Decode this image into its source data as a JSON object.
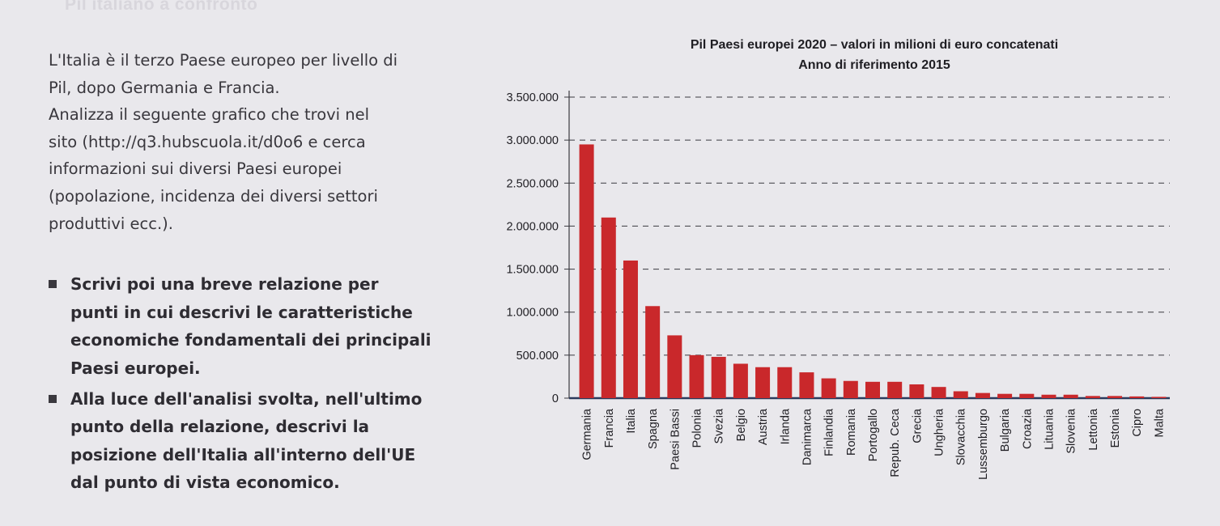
{
  "header": {
    "text": "Pil italiano a confronto"
  },
  "intro": {
    "lines": [
      "L'Italia è il terzo Paese europeo per livello di",
      "Pil, dopo Germania e Francia.",
      "Analizza il seguente grafico che trovi nel",
      "sito (http://q3.hubscuola.it/d0o6 e cerca",
      "informazioni sui diversi Paesi europei",
      "(popolazione, incidenza dei diversi settori",
      "produttivi ecc.)."
    ]
  },
  "bullets": [
    {
      "lines": [
        "Scrivi poi una breve relazione per",
        "punti in cui descrivi le caratteristiche",
        "economiche fondamentali dei principali",
        "Paesi europei."
      ]
    },
    {
      "lines": [
        "Alla luce dell'analisi svolta, nell'ultimo",
        "punto della relazione, descrivi la",
        "posizione dell'Italia all'interno dell'UE",
        "dal punto di vista economico."
      ]
    }
  ],
  "colors": {
    "bar": "#c9282b",
    "grid": "#3a3a40",
    "background": "#e9e8ec"
  },
  "chart_data": {
    "type": "bar",
    "title": "Pil Paesi europei 2020 – valori in milioni di euro concatenati",
    "subtitle": "Anno di riferimento 2015",
    "xlabel": "",
    "ylabel": "",
    "ylim": [
      0,
      3500000
    ],
    "yticks": [
      0,
      500000,
      1000000,
      1500000,
      2000000,
      2500000,
      3000000,
      3500000
    ],
    "ytick_labels": [
      "0",
      "500.000",
      "1.000.000",
      "1.500.000",
      "2.000.000",
      "2.500.000",
      "3.000.000",
      "3.500.000"
    ],
    "grid": "dashed horizontal",
    "legend": "none",
    "categories": [
      "Germania",
      "Francia",
      "Italia",
      "Spagna",
      "Paesi Bassi",
      "Polonia",
      "Svezia",
      "Belgio",
      "Austria",
      "Irlanda",
      "Danimarca",
      "Finlandia",
      "Romania",
      "Portogallo",
      "Repub. Ceca",
      "Grecia",
      "Ungheria",
      "Slovacchia",
      "Lussemburgo",
      "Bulgaria",
      "Croazia",
      "Lituania",
      "Slovenia",
      "Lettonia",
      "Estonia",
      "Cipro",
      "Malta"
    ],
    "values": [
      2950000,
      2100000,
      1600000,
      1070000,
      730000,
      500000,
      480000,
      400000,
      360000,
      360000,
      300000,
      230000,
      200000,
      190000,
      190000,
      160000,
      130000,
      80000,
      60000,
      50000,
      50000,
      40000,
      40000,
      25000,
      25000,
      20000,
      15000
    ]
  }
}
